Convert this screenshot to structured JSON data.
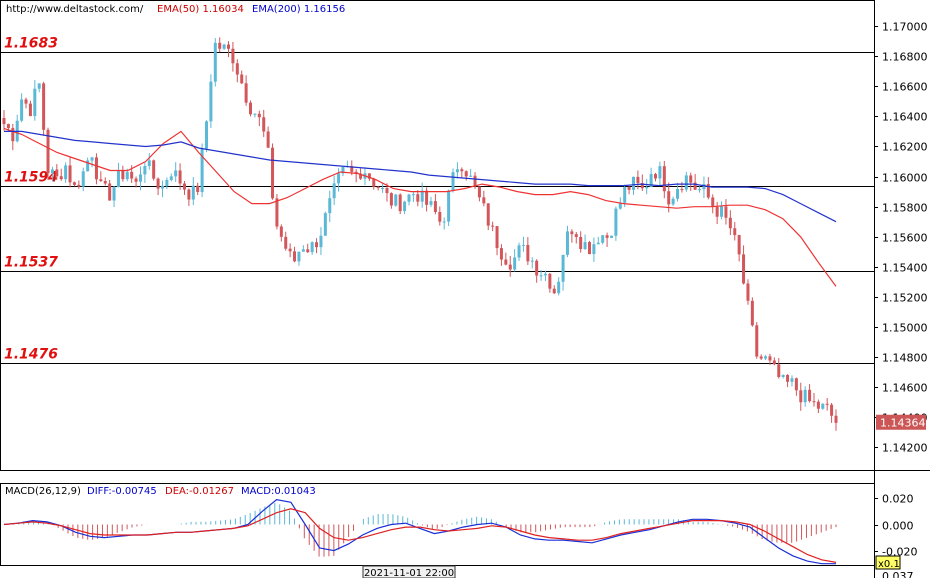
{
  "header": {
    "site": "http://www.deltastock.com/",
    "ema50_label": "EMA(50)",
    "ema50_value": "1.16034",
    "ema200_label": "EMA(200)",
    "ema200_value": "1.16156"
  },
  "colors": {
    "bull": "#5bb8d6",
    "bear": "#d2565a",
    "ema50": "#ee3333",
    "ema200": "#2233cc",
    "level_text": "#e01010",
    "price_tag_bg": "#cc5555",
    "grid": "#cccccc"
  },
  "price_tag": "1.14364",
  "macd_header": {
    "title": "MACD(26,12,9)",
    "diff": "DIFF:-0.00745",
    "dea": "DEA:-0.01267",
    "macd": "MACD:0.01043"
  },
  "time_label": "2021-11-01 22:00",
  "zoom_badge": "x0.1",
  "macd_extra_tick": "0.037",
  "chart_data": [
    {
      "type": "candlestick",
      "ylim": [
        1.1405,
        1.1716
      ],
      "yticks": [
        "1.17000",
        "1.16800",
        "1.16600",
        "1.16400",
        "1.16200",
        "1.16000",
        "1.15800",
        "1.15600",
        "1.15400",
        "1.15200",
        "1.15000",
        "1.14800",
        "1.14600",
        "1.14400",
        "1.14200"
      ],
      "levels": [
        {
          "label": "1.1683",
          "value": 1.1683
        },
        {
          "label": "1.1594",
          "value": 1.1594
        },
        {
          "label": "1.1537",
          "value": 1.1537
        },
        {
          "label": "1.1476",
          "value": 1.1476
        }
      ],
      "close_path": [
        1.1635,
        1.1628,
        1.1652,
        1.1645,
        1.1662,
        1.1605,
        1.1598,
        1.1608,
        1.1592,
        1.1602,
        1.1618,
        1.1592,
        1.1588,
        1.1598,
        1.1605,
        1.1593,
        1.1612,
        1.16,
        1.1592,
        1.1605,
        1.1598,
        1.159,
        1.1588,
        1.163,
        1.1688,
        1.1685,
        1.1682,
        1.1665,
        1.1648,
        1.164,
        1.1622,
        1.157,
        1.1555,
        1.1542,
        1.1555,
        1.1552,
        1.156,
        1.1578,
        1.1595,
        1.1605,
        1.16,
        1.1606,
        1.1598,
        1.1592,
        1.1584,
        1.1582,
        1.1586,
        1.159,
        1.1583,
        1.1578,
        1.1568,
        1.1593,
        1.1612,
        1.1602,
        1.1588,
        1.1575,
        1.156,
        1.1548,
        1.1543,
        1.1552,
        1.1547,
        1.1538,
        1.1535,
        1.1522,
        1.1556,
        1.1568,
        1.1556,
        1.1553,
        1.1562,
        1.156,
        1.1578,
        1.1592,
        1.1595,
        1.159,
        1.1605,
        1.1602,
        1.1585,
        1.1595,
        1.16,
        1.1592,
        1.159,
        1.158,
        1.1575,
        1.1565,
        1.1545,
        1.151,
        1.148,
        1.1478,
        1.147,
        1.1462,
        1.1462,
        1.1455,
        1.145,
        1.1447,
        1.1445,
        1.1437
      ],
      "series": [
        {
          "name": "EMA(50)",
          "values": [
            1.1632,
            1.1628,
            1.1622,
            1.1616,
            1.1612,
            1.1608,
            1.1604,
            1.1604,
            1.161,
            1.1622,
            1.163,
            1.1616,
            1.1603,
            1.159,
            1.1582,
            1.1582,
            1.1586,
            1.1592,
            1.1598,
            1.1603,
            1.1602,
            1.1598,
            1.1592,
            1.159,
            1.159,
            1.159,
            1.1592,
            1.1595,
            1.1593,
            1.159,
            1.1588,
            1.1588,
            1.159,
            1.1588,
            1.1584,
            1.1582,
            1.1581,
            1.158,
            1.1579,
            1.158,
            1.158,
            1.1581,
            1.1581,
            1.1578,
            1.1572,
            1.156,
            1.1543,
            1.1527
          ]
        },
        {
          "name": "EMA(200)",
          "values": [
            1.163,
            1.163,
            1.1628,
            1.1626,
            1.1624,
            1.1623,
            1.1622,
            1.1621,
            1.162,
            1.1621,
            1.1623,
            1.1619,
            1.1617,
            1.1615,
            1.1613,
            1.1611,
            1.161,
            1.1609,
            1.1608,
            1.1607,
            1.1606,
            1.1605,
            1.1604,
            1.1603,
            1.1601,
            1.16,
            1.1599,
            1.1598,
            1.1597,
            1.1596,
            1.1595,
            1.1595,
            1.1595,
            1.1594,
            1.1594,
            1.1594,
            1.1595,
            1.1594,
            1.1595,
            1.1595,
            1.1593,
            1.1593,
            1.1593,
            1.1592,
            1.1588,
            1.1582,
            1.1576,
            1.157
          ]
        }
      ]
    },
    {
      "type": "line",
      "title": "MACD(26,12,9)",
      "ylim": [
        -0.031,
        0.031
      ],
      "yticks": [
        "0.020",
        "0.000",
        "-0.020"
      ],
      "series": [
        {
          "name": "DIFF",
          "values": [
            0.0,
            0.001,
            0.003,
            0.002,
            -0.001,
            -0.006,
            -0.009,
            -0.01,
            -0.009,
            -0.008,
            -0.008,
            -0.007,
            -0.006,
            -0.006,
            -0.005,
            -0.004,
            -0.003,
            0.0,
            0.01,
            0.019,
            0.017,
            0.0,
            -0.018,
            -0.02,
            -0.015,
            -0.008,
            -0.003,
            0.0,
            0.001,
            -0.003,
            -0.007,
            -0.005,
            -0.002,
            0.0,
            0.001,
            -0.002,
            -0.008,
            -0.011,
            -0.012,
            -0.012,
            -0.013,
            -0.014,
            -0.011,
            -0.008,
            -0.006,
            -0.004,
            -0.001,
            0.002,
            0.004,
            0.004,
            0.003,
            0.001,
            -0.002,
            -0.01,
            -0.018,
            -0.024,
            -0.028,
            -0.03,
            -0.03
          ]
        },
        {
          "name": "DEA",
          "values": [
            0.0,
            0.001,
            0.002,
            0.001,
            -0.001,
            -0.004,
            -0.007,
            -0.008,
            -0.008,
            -0.008,
            -0.008,
            -0.007,
            -0.006,
            -0.006,
            -0.005,
            -0.004,
            -0.003,
            -0.001,
            0.004,
            0.009,
            0.012,
            0.009,
            -0.003,
            -0.01,
            -0.012,
            -0.01,
            -0.007,
            -0.004,
            -0.002,
            -0.002,
            -0.004,
            -0.005,
            -0.004,
            -0.003,
            -0.001,
            -0.002,
            -0.005,
            -0.008,
            -0.01,
            -0.011,
            -0.012,
            -0.012,
            -0.01,
            -0.007,
            -0.005,
            -0.003,
            -0.001,
            0.001,
            0.003,
            0.003,
            0.003,
            0.002,
            0.0,
            -0.005,
            -0.011,
            -0.017,
            -0.023,
            -0.027,
            -0.029
          ]
        },
        {
          "name": "MACD",
          "values": [
            0.0,
            0.002,
            0.003,
            0.002,
            -0.004,
            -0.01,
            -0.012,
            -0.01,
            -0.006,
            -0.002,
            0.0,
            0.0,
            0.0,
            0.002,
            0.002,
            0.003,
            0.004,
            0.008,
            0.013,
            0.017,
            0.01,
            -0.012,
            -0.025,
            -0.024,
            -0.01,
            0.004,
            0.008,
            0.008,
            0.006,
            0.0,
            -0.004,
            0.0,
            0.004,
            0.006,
            0.004,
            -0.002,
            -0.006,
            -0.006,
            -0.004,
            -0.002,
            -0.002,
            -0.002,
            0.002,
            0.004,
            0.004,
            0.004,
            0.004,
            0.004,
            0.002,
            0.002,
            0.0,
            -0.002,
            -0.006,
            -0.012,
            -0.014,
            -0.014,
            -0.01,
            -0.006,
            -0.002
          ]
        }
      ]
    }
  ]
}
